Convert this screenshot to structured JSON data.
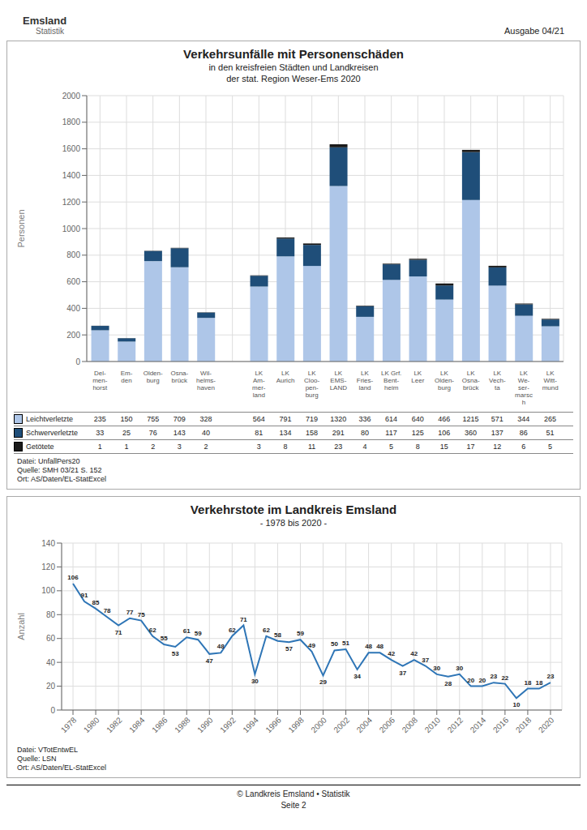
{
  "annotations": [
    "Emsland",
    "Statistik",
    "Ausgabe 04/21",
    "© Landkreis Emsland • Statistik\nSeite 2"
  ],
  "chart_data": [
    {
      "type": "bar",
      "stacked": true,
      "title": "Verkehrsunfälle mit Personenschäden",
      "subtitle": [
        "in den kreisfreien Städten und Landkreisen",
        "der stat. Region Weser-Ems 2020"
      ],
      "ylabel": "Personen",
      "categories": [
        "Del-\nmen-\nhorst",
        "Em-\nden",
        "Olden-\nburg",
        "Osna-\nbrück",
        "Wil-\nhelms-\nhaven",
        null,
        "LK\nAm-\nmer-\nland",
        "LK\nAurich",
        "LK\nCloo-\npen-\nburg",
        "LK\nEMS-\nLAND",
        "LK\nFries-\nland",
        "LK Grf.\nBent-\nheim",
        "LK\nLeer",
        "LK\nOlden-\nburg",
        "LK\nOsna-\nbrück",
        "LK\nVech-\nta",
        "LK\nWe-\nser-\nmarsc\nh",
        "LK\nWitt-\nmund"
      ],
      "series": [
        {
          "name": "Leichtverletzte",
          "color": "#aec6e8",
          "values": [
            235,
            150,
            755,
            709,
            328,
            null,
            564,
            791,
            719,
            1320,
            336,
            614,
            640,
            466,
            1215,
            571,
            344,
            265
          ]
        },
        {
          "name": "Schwerverletzte",
          "color": "#1f4e79",
          "values": [
            33,
            25,
            76,
            143,
            40,
            null,
            81,
            134,
            158,
            291,
            80,
            117,
            125,
            106,
            360,
            137,
            86,
            51
          ]
        },
        {
          "name": "Getötete",
          "color": "#1a1a1a",
          "values": [
            1,
            1,
            2,
            3,
            2,
            null,
            3,
            8,
            11,
            23,
            4,
            5,
            8,
            15,
            17,
            12,
            6,
            5
          ]
        }
      ],
      "ylim": [
        0,
        2000
      ],
      "yticks": [
        0,
        200,
        400,
        600,
        800,
        1000,
        1200,
        1400,
        1600,
        1800,
        2000
      ],
      "grid": true,
      "legend": "bottom",
      "annotations": [
        "Datei: UnfallPers20\nQuelle: SMH 03/21 S. 152\nOrt: AS/Daten/EL-StatExcel"
      ]
    },
    {
      "type": "line",
      "title": "Verkehrstote im Landkreis Emsland",
      "subtitle": [
        "- 1978 bis 2020 -"
      ],
      "ylabel": "Anzahl",
      "x": [
        1978,
        1979,
        1980,
        1981,
        1982,
        1983,
        1984,
        1985,
        1986,
        1987,
        1988,
        1989,
        1990,
        1991,
        1992,
        1993,
        1994,
        1995,
        1996,
        1997,
        1998,
        1999,
        2000,
        2001,
        2002,
        2003,
        2004,
        2005,
        2006,
        2007,
        2008,
        2009,
        2010,
        2011,
        2012,
        2013,
        2014,
        2015,
        2016,
        2017,
        2018,
        2019,
        2020
      ],
      "values": [
        106,
        91,
        85,
        78,
        71,
        77,
        75,
        62,
        55,
        53,
        61,
        59,
        47,
        48,
        62,
        71,
        30,
        62,
        58,
        57,
        59,
        49,
        29,
        50,
        51,
        34,
        48,
        48,
        42,
        37,
        42,
        37,
        30,
        28,
        30,
        20,
        20,
        23,
        22,
        10,
        18,
        18,
        23
      ],
      "color": "#2e75b6",
      "xlim": [
        1977,
        2021
      ],
      "xticks": [
        1978,
        1980,
        1982,
        1984,
        1986,
        1988,
        1990,
        1992,
        1994,
        1996,
        1998,
        2000,
        2002,
        2004,
        2006,
        2008,
        2010,
        2012,
        2014,
        2016,
        2018,
        2020
      ],
      "ylim": [
        0,
        140
      ],
      "yticks": [
        0,
        20,
        40,
        60,
        80,
        100,
        120,
        140
      ],
      "grid": true,
      "data_labels": true,
      "annotations": [
        "Datei: VTotEntwEL\nQuelle: LSN\nOrt: AS/Daten/EL-StatExcel"
      ]
    }
  ]
}
